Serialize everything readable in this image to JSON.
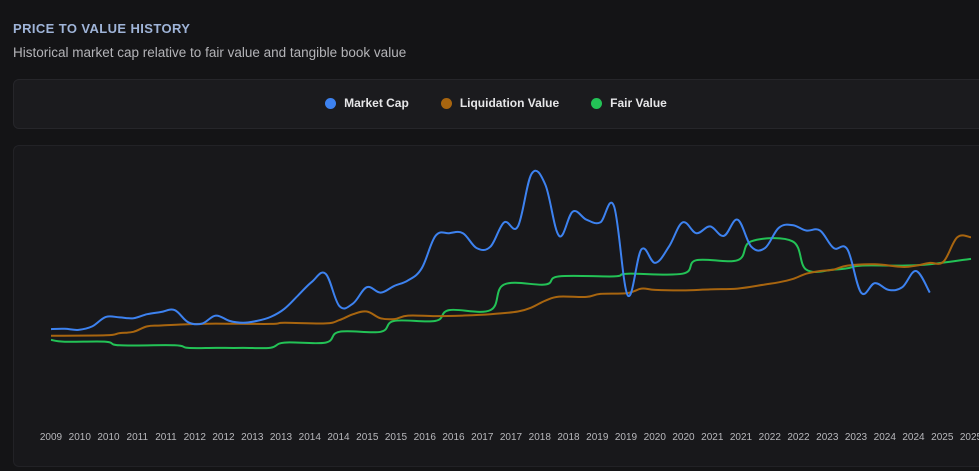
{
  "header": {
    "title": "PRICE TO VALUE HISTORY",
    "subtitle": "Historical market cap relative to fair value and tangible book value"
  },
  "chart_data": {
    "type": "line",
    "title": "PRICE TO VALUE HISTORY",
    "subtitle": "Historical market cap relative to fair value and tangible book value",
    "xlabel": "",
    "ylabel": "",
    "ylim": [
      0,
      100
    ],
    "grid": false,
    "legend_position": "top-center",
    "x_tick_labels": [
      "2009",
      "2010",
      "2010",
      "2011",
      "2011",
      "2012",
      "2012",
      "2013",
      "2013",
      "2014",
      "2014",
      "2015",
      "2015",
      "2016",
      "2016",
      "2017",
      "2017",
      "2018",
      "2018",
      "2019",
      "2019",
      "2020",
      "2020",
      "2021",
      "2021",
      "2022",
      "2022",
      "2023",
      "2023",
      "2024",
      "2024",
      "2025",
      "2025"
    ],
    "series": [
      {
        "name": "Market Cap",
        "color": "#3d82f0",
        "points": [
          [
            0,
            28.5
          ],
          [
            1,
            28.6
          ],
          [
            2,
            28.2
          ],
          [
            3,
            29.5
          ],
          [
            4,
            33
          ],
          [
            5,
            32.8
          ],
          [
            6,
            32.5
          ],
          [
            7,
            34
          ],
          [
            8,
            34.8
          ],
          [
            9,
            35.5
          ],
          [
            10,
            31
          ],
          [
            11,
            30.5
          ],
          [
            12,
            33.5
          ],
          [
            13,
            31.5
          ],
          [
            14,
            30.8
          ],
          [
            15,
            31.5
          ],
          [
            16,
            33
          ],
          [
            17,
            36
          ],
          [
            18,
            41
          ],
          [
            19,
            46
          ],
          [
            20,
            49
          ],
          [
            21,
            37
          ],
          [
            22,
            38
          ],
          [
            23,
            44
          ],
          [
            24,
            42
          ],
          [
            25,
            44.5
          ],
          [
            26,
            46.5
          ],
          [
            27,
            51
          ],
          [
            28,
            63
          ],
          [
            29,
            64
          ],
          [
            30,
            64
          ],
          [
            31,
            58.5
          ],
          [
            32,
            59
          ],
          [
            33,
            68
          ],
          [
            34,
            66.5
          ],
          [
            35,
            86
          ],
          [
            36,
            82
          ],
          [
            37,
            63
          ],
          [
            38,
            72
          ],
          [
            39,
            69
          ],
          [
            40,
            68
          ],
          [
            41,
            74
          ],
          [
            42,
            41
          ],
          [
            43,
            58
          ],
          [
            44,
            53
          ],
          [
            45,
            59
          ],
          [
            46,
            68
          ],
          [
            47,
            64
          ],
          [
            48,
            66.5
          ],
          [
            49,
            63
          ],
          [
            50,
            69
          ],
          [
            51,
            59
          ],
          [
            52,
            58.5
          ],
          [
            53,
            66
          ],
          [
            54,
            67
          ],
          [
            55,
            65
          ],
          [
            56,
            65
          ],
          [
            57,
            58.5
          ],
          [
            58,
            58
          ],
          [
            59,
            42
          ],
          [
            60,
            45.5
          ],
          [
            61,
            43
          ],
          [
            62,
            44
          ],
          [
            63,
            50
          ],
          [
            64,
            42
          ]
        ]
      },
      {
        "name": "Liquidation Value",
        "color": "#a8650f",
        "points": [
          [
            0,
            26
          ],
          [
            4,
            26.2
          ],
          [
            5,
            27
          ],
          [
            6,
            27.5
          ],
          [
            7,
            29.5
          ],
          [
            8,
            29.8
          ],
          [
            10,
            30.3
          ],
          [
            12,
            30.5
          ],
          [
            16,
            30.4
          ],
          [
            17,
            30.8
          ],
          [
            20,
            30.6
          ],
          [
            21,
            31.8
          ],
          [
            22,
            34
          ],
          [
            23,
            35
          ],
          [
            24,
            32.5
          ],
          [
            25,
            32.2
          ],
          [
            26,
            33.5
          ],
          [
            28,
            33.3
          ],
          [
            30,
            33.5
          ],
          [
            32,
            34
          ],
          [
            34,
            35
          ],
          [
            35,
            36.5
          ],
          [
            36,
            39
          ],
          [
            37,
            40.5
          ],
          [
            39,
            40.4
          ],
          [
            40,
            41.5
          ],
          [
            42,
            41.8
          ],
          [
            43,
            43.5
          ],
          [
            44,
            43
          ],
          [
            46,
            42.8
          ],
          [
            48,
            43.2
          ],
          [
            50,
            43.5
          ],
          [
            52,
            45
          ],
          [
            53,
            45.8
          ],
          [
            54,
            47
          ],
          [
            55,
            49
          ],
          [
            56,
            50
          ],
          [
            57,
            50.5
          ],
          [
            58,
            52
          ],
          [
            60,
            52.5
          ],
          [
            62,
            51.5
          ],
          [
            63,
            52
          ],
          [
            64,
            53
          ],
          [
            65,
            53.5
          ],
          [
            66,
            62.5
          ],
          [
            67,
            62.5
          ]
        ]
      },
      {
        "name": "Fair Value",
        "color": "#23c256",
        "points": [
          [
            0,
            24.5
          ],
          [
            1,
            23.8
          ],
          [
            4,
            23.8
          ],
          [
            5,
            22.5
          ],
          [
            9,
            22.5
          ],
          [
            10,
            21.5
          ],
          [
            12,
            21.5
          ],
          [
            14,
            21.5
          ],
          [
            16,
            21.6
          ],
          [
            17,
            23.5
          ],
          [
            20,
            23.5
          ],
          [
            21,
            27.5
          ],
          [
            24,
            27.5
          ],
          [
            25,
            31.5
          ],
          [
            28,
            31.5
          ],
          [
            29,
            35.5
          ],
          [
            32,
            35.5
          ],
          [
            33,
            45
          ],
          [
            36,
            45
          ],
          [
            37,
            48
          ],
          [
            41,
            48
          ],
          [
            42,
            49
          ],
          [
            46,
            49
          ],
          [
            47,
            54
          ],
          [
            50,
            54
          ],
          [
            51,
            61
          ],
          [
            54,
            61
          ],
          [
            55,
            50.5
          ],
          [
            57,
            50.5
          ],
          [
            58,
            51
          ],
          [
            59,
            52
          ],
          [
            62,
            52
          ],
          [
            64,
            52.5
          ],
          [
            67,
            54.5
          ]
        ]
      }
    ]
  }
}
